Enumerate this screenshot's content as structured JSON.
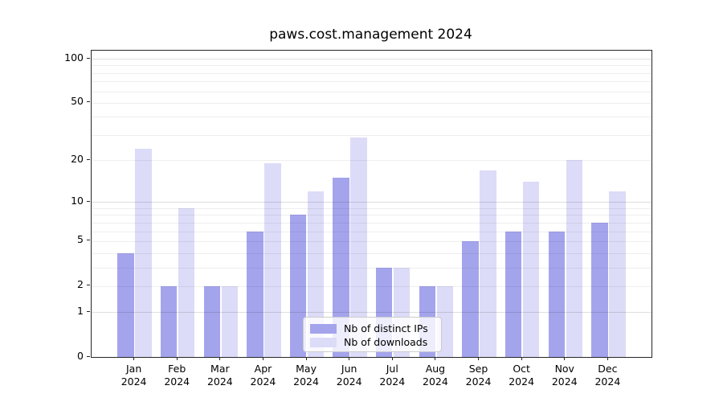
{
  "title": "paws.cost.management 2024",
  "chart_data": {
    "type": "bar",
    "title": "paws.cost.management 2024",
    "categories": [
      "Jan",
      "Feb",
      "Mar",
      "Apr",
      "May",
      "Jun",
      "Jul",
      "Aug",
      "Sep",
      "Oct",
      "Nov",
      "Dec"
    ],
    "x_year_label": "2024",
    "series": [
      {
        "name": "Nb of distinct IPs",
        "color": "#a4a4ed",
        "values": [
          4,
          2,
          2,
          6,
          8,
          15,
          3,
          2,
          5,
          6,
          6,
          7
        ]
      },
      {
        "name": "Nb of downloads",
        "color": "#dcdcf8",
        "values": [
          24,
          9,
          2,
          19,
          12,
          29,
          3,
          2,
          17,
          14,
          20,
          12
        ]
      }
    ],
    "xlabel": "",
    "ylabel": "",
    "yscale": "log1p",
    "ylim": [
      0,
      113
    ],
    "yticks": [
      0,
      1,
      2,
      5,
      10,
      20,
      50,
      100
    ],
    "major_gridlines": [
      1,
      10,
      100
    ],
    "minor_gridlines": [
      2,
      3,
      4,
      5,
      6,
      7,
      8,
      9,
      20,
      30,
      40,
      50,
      60,
      70,
      80,
      90
    ],
    "grid": "horizontal",
    "legend_position": "lower center"
  }
}
